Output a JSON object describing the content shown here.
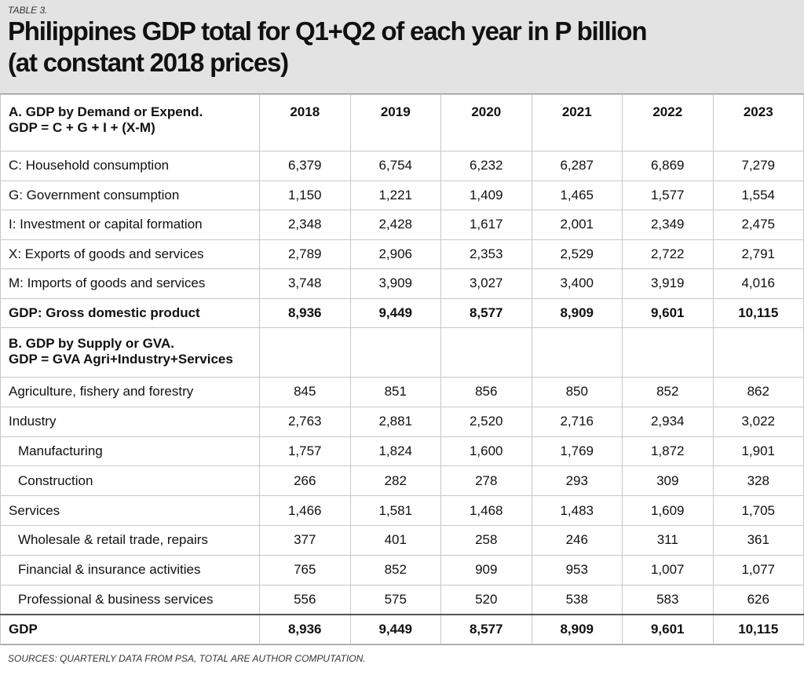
{
  "header": {
    "label": "TABLE 3.",
    "title_lines": [
      "Philippines GDP total for Q1+Q2 of each year in P billion",
      "(at constant 2018 prices)"
    ]
  },
  "table": {
    "head": {
      "label_lines": [
        "A. GDP by Demand or Expend.",
        "GDP = C + G + I + (X-M)"
      ],
      "years": [
        "2018",
        "2019",
        "2020",
        "2021",
        "2022",
        "2023"
      ]
    },
    "rows": [
      {
        "kind": "normal",
        "label": "C: Household consumption",
        "values": [
          "6,379",
          "6,754",
          "6,232",
          "6,287",
          "6,869",
          "7,279"
        ]
      },
      {
        "kind": "normal",
        "label": "G: Government consumption",
        "values": [
          "1,150",
          "1,221",
          "1,409",
          "1,465",
          "1,577",
          "1,554"
        ]
      },
      {
        "kind": "normal",
        "label": "I: Investment or capital formation",
        "values": [
          "2,348",
          "2,428",
          "1,617",
          "2,001",
          "2,349",
          "2,475"
        ]
      },
      {
        "kind": "normal",
        "label": "X: Exports of goods and services",
        "values": [
          "2,789",
          "2,906",
          "2,353",
          "2,529",
          "2,722",
          "2,791"
        ]
      },
      {
        "kind": "normal",
        "label": "M: Imports of goods and services",
        "values": [
          "3,748",
          "3,909",
          "3,027",
          "3,400",
          "3,919",
          "4,016"
        ]
      },
      {
        "kind": "bold",
        "label": "GDP: Gross domestic product",
        "values": [
          "8,936",
          "9,449",
          "8,577",
          "8,909",
          "9,601",
          "10,115"
        ]
      },
      {
        "kind": "section",
        "label_lines": [
          "B. GDP by Supply or GVA.",
          "GDP = GVA Agri+Industry+Services"
        ]
      },
      {
        "kind": "normal",
        "label": "Agriculture, fishery and forestry",
        "values": [
          "845",
          "851",
          "856",
          "850",
          "852",
          "862"
        ]
      },
      {
        "kind": "normal",
        "label": "Industry",
        "values": [
          "2,763",
          "2,881",
          "2,520",
          "2,716",
          "2,934",
          "3,022"
        ]
      },
      {
        "kind": "indent",
        "label": "Manufacturing",
        "values": [
          "1,757",
          "1,824",
          "1,600",
          "1,769",
          "1,872",
          "1,901"
        ]
      },
      {
        "kind": "indent",
        "label": "Construction",
        "values": [
          "266",
          "282",
          "278",
          "293",
          "309",
          "328"
        ]
      },
      {
        "kind": "normal",
        "label": "Services",
        "values": [
          "1,466",
          "1,581",
          "1,468",
          "1,483",
          "1,609",
          "1,705"
        ]
      },
      {
        "kind": "indent",
        "label": "Wholesale & retail trade, repairs",
        "values": [
          "377",
          "401",
          "258",
          "246",
          "311",
          "361"
        ]
      },
      {
        "kind": "indent",
        "label": "Financial & insurance activities",
        "values": [
          "765",
          "852",
          "909",
          "953",
          "1,007",
          "1,077"
        ]
      },
      {
        "kind": "indent",
        "label": "Professional & business services",
        "values": [
          "556",
          "575",
          "520",
          "538",
          "583",
          "626"
        ]
      },
      {
        "kind": "bold",
        "label": "GDP",
        "values": [
          "8,936",
          "9,449",
          "8,577",
          "8,909",
          "9,601",
          "10,115"
        ]
      }
    ]
  },
  "footer": {
    "note": "SOURCES: QUARTERLY DATA FROM PSA, TOTAL ARE AUTHOR COMPUTATION."
  }
}
